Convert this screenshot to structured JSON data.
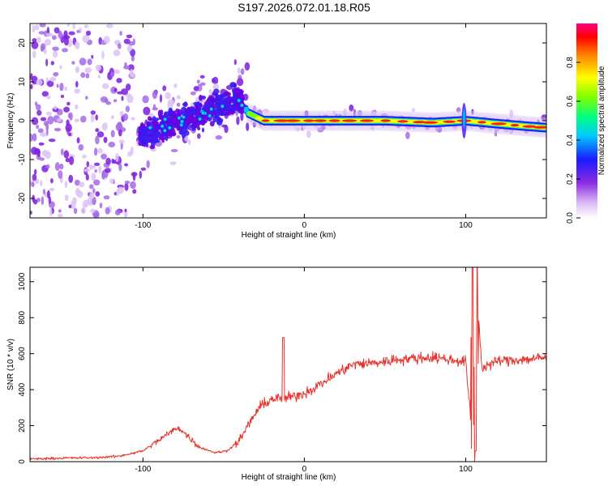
{
  "figure": {
    "title": "S197.2026.072.01.18.R05"
  },
  "chart_data": [
    {
      "type": "heatmap",
      "title": "S197.2026.072.01.18.R05",
      "xlabel": "Height of straight line (km)",
      "ylabel": "Frequency (Hz)",
      "xlim": [
        -170,
        150
      ],
      "ylim": [
        -25,
        25
      ],
      "xticks": [
        -100,
        0,
        100
      ],
      "xtick_labels": [
        "-100",
        "0",
        "100"
      ],
      "yticks": [
        -20,
        -10,
        0,
        10,
        20
      ],
      "ytick_labels": [
        "-20",
        "-10",
        "0",
        "10",
        "20"
      ],
      "colorbar": {
        "label": "Normalized spectral amplitude",
        "range": [
          0,
          1
        ],
        "ticks": [
          0.0,
          0.2,
          0.4,
          0.6,
          0.8
        ],
        "tick_labels": [
          "0.0",
          "0.2",
          "0.4",
          "0.6",
          "0.8"
        ],
        "colormap": [
          "#ffffff",
          "#8a2be2",
          "#0000ff",
          "#00ffff",
          "#00ff00",
          "#ffff00",
          "#ff0000",
          "#ff00ff"
        ]
      },
      "trace": {
        "description_points_x_km": [
          -100,
          -85,
          -70,
          -55,
          -45,
          -40,
          -35,
          -25,
          -10,
          0,
          20,
          50,
          80,
          100,
          120,
          140,
          150
        ],
        "description_points_freq_hz": [
          -4,
          -1,
          1,
          3,
          5,
          6,
          2,
          0,
          0,
          0,
          0,
          0,
          -0.5,
          0,
          -0.8,
          -1.5,
          -1.8
        ],
        "amplitude": [
          0.2,
          0.3,
          0.35,
          0.4,
          0.45,
          0.45,
          0.6,
          0.85,
          0.9,
          0.9,
          0.95,
          0.9,
          0.9,
          0.9,
          0.9,
          0.85,
          0.85
        ]
      }
    },
    {
      "type": "line",
      "xlabel": "Height of straight line (km)",
      "ylabel": "SNR (10 * v/v)",
      "xlim": [
        -170,
        150
      ],
      "ylim": [
        0,
        1080
      ],
      "xticks": [
        -100,
        0,
        100
      ],
      "xtick_labels": [
        "-100",
        "0",
        "100"
      ],
      "yticks": [
        0,
        200,
        400,
        600,
        800,
        1000
      ],
      "ytick_labels": [
        "0",
        "200",
        "400",
        "600",
        "800",
        "1000"
      ],
      "color": "#e8322b",
      "series": [
        {
          "name": "SNR",
          "x": [
            -170,
            -150,
            -130,
            -115,
            -100,
            -90,
            -82,
            -78,
            -72,
            -65,
            -55,
            -48,
            -40,
            -35,
            -28,
            -20,
            -12,
            0,
            10,
            20,
            30,
            45,
            60,
            80,
            95,
            100,
            103,
            105,
            107,
            110,
            120,
            140,
            150
          ],
          "values": [
            15,
            20,
            22,
            30,
            60,
            120,
            170,
            190,
            140,
            80,
            50,
            60,
            120,
            200,
            300,
            350,
            350,
            380,
            430,
            490,
            540,
            550,
            570,
            580,
            560,
            560,
            250,
            200,
            950,
            520,
            560,
            570,
            580
          ]
        }
      ],
      "annotations": [
        {
          "x": -13,
          "value": 690,
          "label": "spike"
        },
        {
          "x": 104,
          "value": 1080,
          "label": "spike"
        },
        {
          "x": 106,
          "value": 60,
          "label": "dip"
        }
      ]
    }
  ]
}
